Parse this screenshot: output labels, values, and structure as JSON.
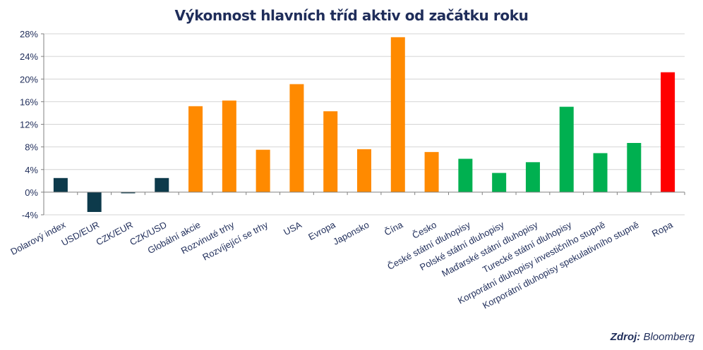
{
  "source": {
    "label": "Zdroj",
    "value": "Bloomberg"
  },
  "chart_data": {
    "type": "bar",
    "title": "Výkonnost hlavních tříd aktiv od začátku roku",
    "xlabel": "",
    "ylabel": "",
    "ylim": [
      -4,
      28
    ],
    "yticks": [
      -4,
      0,
      4,
      8,
      12,
      16,
      20,
      24,
      28
    ],
    "ytick_labels": [
      "-4%",
      "0%",
      "4%",
      "8%",
      "12%",
      "16%",
      "20%",
      "24%",
      "28%"
    ],
    "grid": true,
    "legend": "none",
    "categories": [
      "Dolarový index",
      "USD/EUR",
      "CZK/EUR",
      "CZK/USD",
      "Globální akcie",
      "Rozvinuté trhy",
      "Rozvíjející se trhy",
      "USA",
      "Evropa",
      "Japonsko",
      "Čína",
      "Česko",
      "České státní dluhopisy",
      "Polské státní dluhopisy",
      "Maďarské státní dluhopisy",
      "Turecké státní dluhopisy",
      "Korporátní dluhopisy investičního stupně",
      "Korporátní dluhopisy spekulativního stupně",
      "Ropa"
    ],
    "values": [
      2.5,
      -3.5,
      -0.2,
      2.5,
      15.2,
      16.2,
      7.5,
      19.1,
      14.3,
      7.6,
      27.4,
      7.1,
      5.9,
      3.4,
      5.3,
      15.1,
      6.9,
      8.7,
      21.2
    ],
    "bar_colors": [
      "#0d3a4b",
      "#0d3a4b",
      "#0d3a4b",
      "#0d3a4b",
      "#ff8a00",
      "#ff8a00",
      "#ff8a00",
      "#ff8a00",
      "#ff8a00",
      "#ff8a00",
      "#ff8a00",
      "#ff8a00",
      "#00b050",
      "#00b050",
      "#00b050",
      "#00b050",
      "#00b050",
      "#00b050",
      "#ff0000"
    ]
  }
}
